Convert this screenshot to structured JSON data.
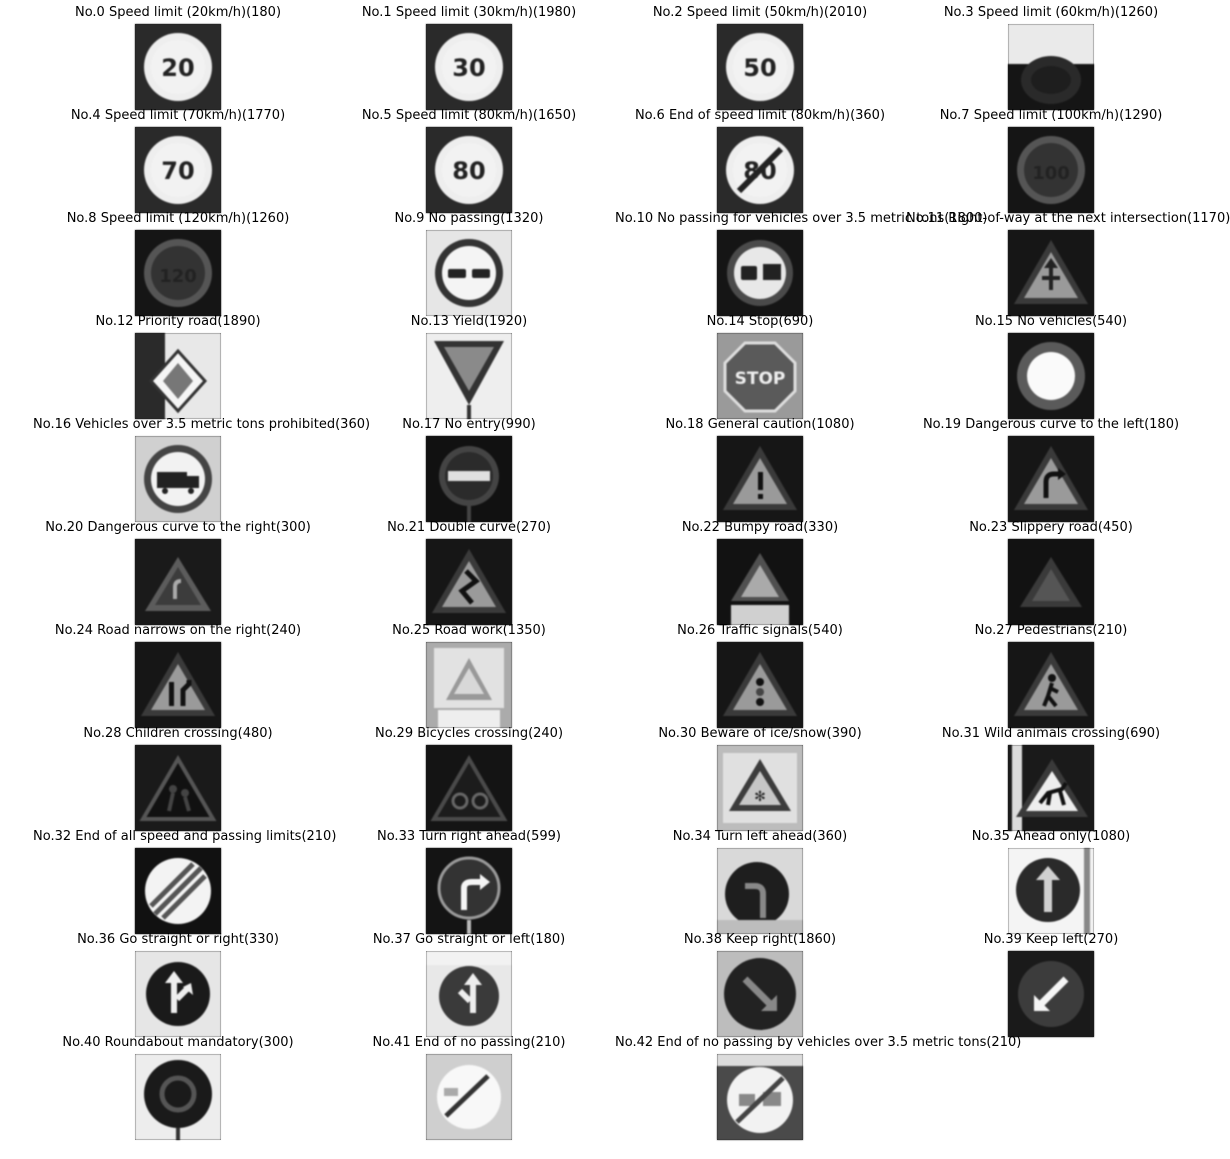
{
  "figure": {
    "columns": 4,
    "panels": [
      {
        "title": "No.0 Speed limit (20km/h)(180)",
        "icon": "speed-limit-20",
        "tone": "bright"
      },
      {
        "title": "No.1 Speed limit (30km/h)(1980)",
        "icon": "speed-limit-30",
        "tone": "bright"
      },
      {
        "title": "No.2 Speed limit (50km/h)(2010)",
        "icon": "speed-limit-50",
        "tone": "bright"
      },
      {
        "title": "No.3 Speed limit (60km/h)(1260)",
        "icon": "speed-limit-60",
        "tone": "dark"
      },
      {
        "title": "No.4 Speed limit (70km/h)(1770)",
        "icon": "speed-limit-70",
        "tone": "bright"
      },
      {
        "title": "No.5 Speed limit (80km/h)(1650)",
        "icon": "speed-limit-80",
        "tone": "bright"
      },
      {
        "title": "No.6 End of speed limit (80km/h)(360)",
        "icon": "end-speed-limit-80",
        "tone": "bright"
      },
      {
        "title": "No.7 Speed limit (100km/h)(1290)",
        "icon": "speed-limit-100",
        "tone": "dark"
      },
      {
        "title": "No.8 Speed limit (120km/h)(1260)",
        "icon": "speed-limit-120",
        "tone": "dark"
      },
      {
        "title": "No.9 No passing(1320)",
        "icon": "no-passing",
        "tone": "bright"
      },
      {
        "title": "No.10 No passing for vehicles over 3.5 metric tons(1800)",
        "icon": "no-passing-trucks",
        "tone": "dark"
      },
      {
        "title": "No.11 Right-of-way at the next intersection(1170)",
        "icon": "right-of-way",
        "tone": "dark"
      },
      {
        "title": "No.12 Priority road(1890)",
        "icon": "priority-road",
        "tone": "bright"
      },
      {
        "title": "No.13 Yield(1920)",
        "icon": "yield",
        "tone": "bright"
      },
      {
        "title": "No.14 Stop(690)",
        "icon": "stop",
        "tone": "bright"
      },
      {
        "title": "No.15 No vehicles(540)",
        "icon": "no-vehicles",
        "tone": "dark"
      },
      {
        "title": "No.16 Vehicles over 3.5 metric tons prohibited(360)",
        "icon": "trucks-prohibited",
        "tone": "bright"
      },
      {
        "title": "No.17 No entry(990)",
        "icon": "no-entry",
        "tone": "dark"
      },
      {
        "title": "No.18 General caution(1080)",
        "icon": "general-caution",
        "tone": "dark"
      },
      {
        "title": "No.19 Dangerous curve to the left(180)",
        "icon": "curve-left",
        "tone": "dark"
      },
      {
        "title": "No.20 Dangerous curve to the right(300)",
        "icon": "curve-right",
        "tone": "dark"
      },
      {
        "title": "No.21 Double curve(270)",
        "icon": "double-curve",
        "tone": "dark"
      },
      {
        "title": "No.22 Bumpy road(330)",
        "icon": "bumpy-road",
        "tone": "dark"
      },
      {
        "title": "No.23 Slippery road(450)",
        "icon": "slippery-road",
        "tone": "dark"
      },
      {
        "title": "No.24 Road narrows on the right(240)",
        "icon": "road-narrows",
        "tone": "dark"
      },
      {
        "title": "No.25 Road work(1350)",
        "icon": "road-work",
        "tone": "bright"
      },
      {
        "title": "No.26 Traffic signals(540)",
        "icon": "traffic-signals",
        "tone": "dark"
      },
      {
        "title": "No.27 Pedestrians(210)",
        "icon": "pedestrians",
        "tone": "dark"
      },
      {
        "title": "No.28 Children crossing(480)",
        "icon": "children-crossing",
        "tone": "dark"
      },
      {
        "title": "No.29 Bicycles crossing(240)",
        "icon": "bicycles-crossing",
        "tone": "dark"
      },
      {
        "title": "No.30 Beware of ice/snow(390)",
        "icon": "ice-snow",
        "tone": "bright"
      },
      {
        "title": "No.31 Wild animals crossing(690)",
        "icon": "wild-animals",
        "tone": "dark"
      },
      {
        "title": "No.32 End of all speed and passing limits(210)",
        "icon": "end-all-limits",
        "tone": "dark"
      },
      {
        "title": "No.33 Turn right ahead(599)",
        "icon": "turn-right-ahead",
        "tone": "dark"
      },
      {
        "title": "No.34 Turn left ahead(360)",
        "icon": "turn-left-ahead",
        "tone": "bright"
      },
      {
        "title": "No.35 Ahead only(1080)",
        "icon": "ahead-only",
        "tone": "bright"
      },
      {
        "title": "No.36 Go straight or right(330)",
        "icon": "straight-or-right",
        "tone": "bright"
      },
      {
        "title": "No.37 Go straight or left(180)",
        "icon": "straight-or-left",
        "tone": "bright"
      },
      {
        "title": "No.38 Keep right(1860)",
        "icon": "keep-right",
        "tone": "bright"
      },
      {
        "title": "No.39 Keep left(270)",
        "icon": "keep-left",
        "tone": "dark"
      },
      {
        "title": "No.40 Roundabout mandatory(300)",
        "icon": "roundabout",
        "tone": "bright"
      },
      {
        "title": "No.41 End of no passing(210)",
        "icon": "end-no-passing",
        "tone": "bright"
      },
      {
        "title": "No.42 End of no passing by vehicles over 3.5 metric tons(210)",
        "icon": "end-no-passing-trucks",
        "tone": "bright"
      }
    ]
  }
}
